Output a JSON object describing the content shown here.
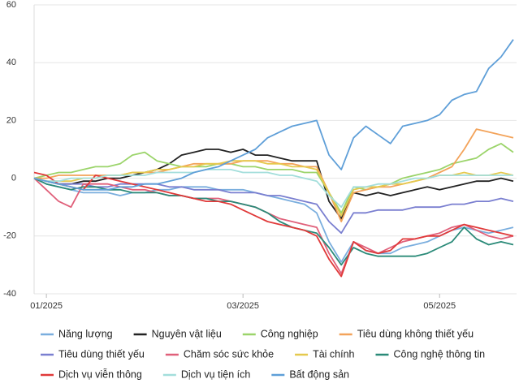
{
  "chart_data": {
    "type": "line",
    "categories": [
      null,
      "01/2025",
      null,
      null,
      null,
      null,
      null,
      null,
      null,
      null,
      null,
      null,
      null,
      null,
      null,
      null,
      null,
      "03/2025",
      null,
      null,
      null,
      null,
      null,
      null,
      null,
      null,
      null,
      null,
      null,
      null,
      null,
      null,
      null,
      "05/2025",
      null,
      null,
      null,
      null,
      null,
      null
    ],
    "ylim": [
      -40,
      60
    ],
    "yticks": [
      -40,
      -20,
      0,
      20,
      40,
      60
    ],
    "grid": true,
    "legend": "bottom",
    "series": [
      {
        "name": "Năng lượng",
        "color": "#7aaede",
        "values": [
          0,
          -2,
          -3,
          -4,
          -5,
          -5,
          -5,
          -6,
          -5,
          -5,
          -4,
          -4,
          -3,
          -3,
          -3,
          -4,
          -4,
          -4,
          -5,
          -6,
          -7,
          -8,
          -9,
          -12,
          -22,
          -29,
          -22,
          -25,
          -26,
          -26,
          -24,
          -23,
          -22,
          -20,
          -18,
          -17,
          -18,
          -19,
          -18,
          -17
        ]
      },
      {
        "name": "Nguyên vật liệu",
        "color": "#222222",
        "values": [
          0,
          -1,
          -2,
          -2,
          -1,
          -1,
          0,
          0,
          1,
          2,
          3,
          5,
          8,
          9,
          10,
          10,
          9,
          10,
          8,
          8,
          7,
          6,
          6,
          6,
          -8,
          -14,
          -5,
          -6,
          -5,
          -6,
          -5,
          -4,
          -3,
          -4,
          -3,
          -2,
          -1,
          -1,
          0,
          -1
        ]
      },
      {
        "name": "Công nghiệp",
        "color": "#9bd46a",
        "values": [
          0,
          1,
          2,
          2,
          3,
          4,
          4,
          5,
          8,
          9,
          6,
          5,
          4,
          4,
          4,
          5,
          5,
          4,
          4,
          3,
          3,
          3,
          2,
          2,
          -5,
          -12,
          -3,
          -4,
          -3,
          -2,
          0,
          1,
          2,
          3,
          5,
          6,
          7,
          10,
          12,
          9
        ]
      },
      {
        "name": "Tiêu dùng không thiết yếu",
        "color": "#f3a35a",
        "values": [
          0,
          0,
          1,
          1,
          1,
          1,
          1,
          1,
          2,
          2,
          2,
          3,
          4,
          5,
          5,
          5,
          5,
          6,
          6,
          6,
          5,
          5,
          4,
          4,
          -5,
          -15,
          -5,
          -4,
          -3,
          -3,
          -2,
          -1,
          0,
          2,
          4,
          10,
          17,
          16,
          15,
          14
        ]
      },
      {
        "name": "Tiêu dùng thiết yếu",
        "color": "#7a7fd0",
        "values": [
          0,
          -1,
          -2,
          -2,
          -2,
          -3,
          -3,
          -2,
          -2,
          -2,
          -2,
          -3,
          -3,
          -4,
          -4,
          -4,
          -5,
          -5,
          -5,
          -6,
          -6,
          -7,
          -8,
          -9,
          -15,
          -19,
          -12,
          -12,
          -11,
          -11,
          -11,
          -10,
          -10,
          -10,
          -9,
          -9,
          -8,
          -8,
          -7,
          -8
        ]
      },
      {
        "name": "Chăm sóc sức khỏe",
        "color": "#e0607a",
        "values": [
          0,
          -4,
          -8,
          -10,
          -2,
          -2,
          -2,
          -3,
          -4,
          -4,
          -5,
          -6,
          -6,
          -7,
          -7,
          -7,
          -8,
          -9,
          -10,
          -12,
          -14,
          -15,
          -16,
          -17,
          -26,
          -33,
          -22,
          -24,
          -26,
          -24,
          -22,
          -21,
          -20,
          -19,
          -17,
          -16,
          -18,
          -20,
          -21,
          -20
        ]
      },
      {
        "name": "Tài chính",
        "color": "#e5c94e",
        "values": [
          0,
          -1,
          -1,
          -1,
          0,
          0,
          1,
          1,
          2,
          2,
          3,
          3,
          4,
          4,
          5,
          5,
          6,
          6,
          6,
          5,
          5,
          4,
          4,
          3,
          -5,
          -13,
          -4,
          -3,
          -3,
          -2,
          -2,
          -1,
          0,
          1,
          1,
          2,
          1,
          1,
          2,
          1
        ]
      },
      {
        "name": "Công nghệ thông tin",
        "color": "#2a8a78",
        "values": [
          0,
          -2,
          -3,
          -4,
          -3,
          -3,
          -4,
          -4,
          -5,
          -5,
          -5,
          -6,
          -6,
          -7,
          -7,
          -8,
          -8,
          -9,
          -10,
          -12,
          -15,
          -17,
          -18,
          -19,
          -24,
          -30,
          -24,
          -26,
          -27,
          -27,
          -27,
          -27,
          -26,
          -24,
          -22,
          -17,
          -21,
          -23,
          -22,
          -23
        ]
      },
      {
        "name": "Dịch vụ viễn thông",
        "color": "#e03a3a",
        "values": [
          2,
          1,
          -2,
          -3,
          -4,
          1,
          0,
          -1,
          -2,
          -3,
          -4,
          -5,
          -6,
          -7,
          -8,
          -8,
          -9,
          -11,
          -13,
          -15,
          -16,
          -17,
          -18,
          -20,
          -28,
          -34,
          -22,
          -25,
          -26,
          -25,
          -21,
          -21,
          -20,
          -20,
          -18,
          -16,
          -17,
          -18,
          -19,
          -20
        ]
      },
      {
        "name": "Dịch vụ tiện ích",
        "color": "#a3dedb",
        "values": [
          0,
          -1,
          -1,
          0,
          0,
          0,
          1,
          1,
          1,
          1,
          2,
          2,
          2,
          2,
          3,
          3,
          3,
          2,
          2,
          2,
          1,
          1,
          0,
          -1,
          -6,
          -10,
          -3,
          -3,
          -2,
          -2,
          -1,
          0,
          0,
          1,
          1,
          1,
          1,
          1,
          1,
          1
        ]
      },
      {
        "name": "Bất động sản",
        "color": "#5f9fd8",
        "values": [
          0,
          -1,
          -2,
          -3,
          -4,
          -4,
          -4,
          -3,
          -3,
          -2,
          -2,
          -1,
          0,
          2,
          3,
          4,
          6,
          8,
          10,
          14,
          16,
          18,
          19,
          20,
          8,
          3,
          14,
          18,
          15,
          12,
          18,
          19,
          20,
          22,
          27,
          29,
          30,
          38,
          42,
          48
        ]
      }
    ]
  }
}
